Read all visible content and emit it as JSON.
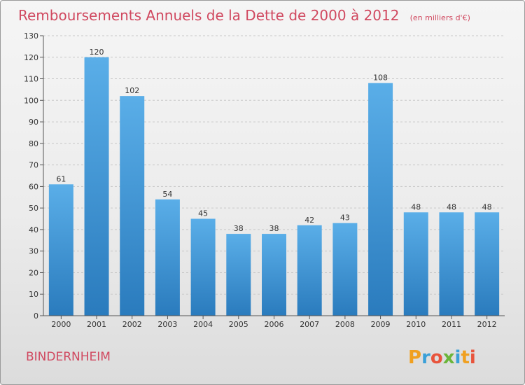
{
  "chart_data": {
    "type": "bar",
    "title": "Remboursements Annuels de la Dette de 2000 à 2012",
    "unit_note": "(en milliers d'€)",
    "categories": [
      "2000",
      "2001",
      "2002",
      "2003",
      "2004",
      "2005",
      "2006",
      "2007",
      "2008",
      "2009",
      "2010",
      "2011",
      "2012"
    ],
    "values": [
      61,
      120,
      102,
      54,
      45,
      38,
      38,
      42,
      43,
      108,
      48,
      48,
      48
    ],
    "ylim": [
      0,
      130
    ],
    "yticks": [
      0,
      10,
      20,
      30,
      40,
      50,
      60,
      70,
      80,
      90,
      100,
      110,
      120,
      130
    ],
    "xlabel": "",
    "ylabel": "",
    "grid": true,
    "bar_color_top": "#5aaee8",
    "bar_color_bottom": "#2a7bbd"
  },
  "commune": "BINDERNHEIM",
  "logo": {
    "text": "Proxiti",
    "letters": [
      {
        "ch": "P",
        "color": "#f0a020"
      },
      {
        "ch": "r",
        "color": "#3aa0d8"
      },
      {
        "ch": "o",
        "color": "#e8543c"
      },
      {
        "ch": "x",
        "color": "#6bb53a"
      },
      {
        "ch": "i",
        "color": "#3aa0d8"
      },
      {
        "ch": "t",
        "color": "#f0a020"
      },
      {
        "ch": "i",
        "color": "#e8543c"
      }
    ]
  },
  "colors": {
    "accent": "#d0485f",
    "grid": "#c8c8c8",
    "axis": "#555555"
  }
}
